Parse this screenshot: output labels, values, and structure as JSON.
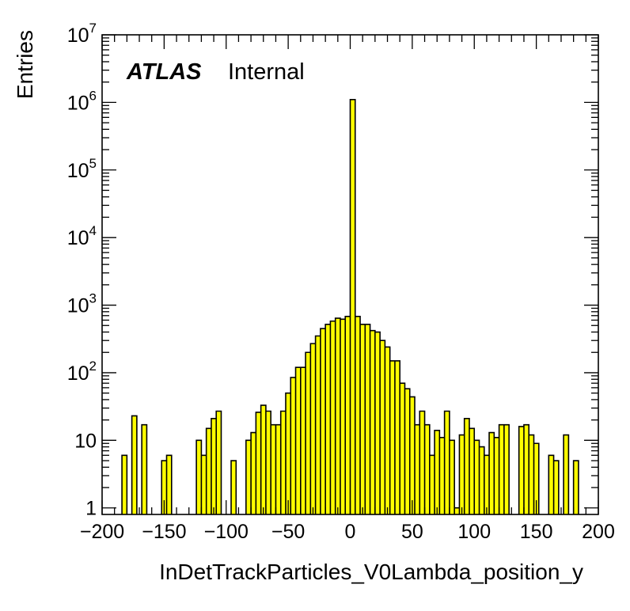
{
  "chart_data": {
    "type": "bar",
    "title": "",
    "xlabel": "InDetTrackParticles_V0Lambda_position_y",
    "ylabel": "Entries",
    "xlim": [
      -200,
      200
    ],
    "ylim": [
      0.8,
      10000000
    ],
    "log_y": true,
    "grid": false,
    "fill_color": "#ffff00",
    "edge_color": "#000000",
    "x_ticks": [
      -200,
      -150,
      -100,
      -50,
      0,
      50,
      100,
      150,
      200
    ],
    "x_tick_labels": [
      "−200",
      "−150",
      "−100",
      "−50",
      "0",
      "50",
      "100",
      "150",
      "200"
    ],
    "y_ticks": [
      {
        "value": 1,
        "base": "1",
        "exp": ""
      },
      {
        "value": 10,
        "base": "10",
        "exp": ""
      },
      {
        "value": 100,
        "base": "10",
        "exp": "2"
      },
      {
        "value": 1000,
        "base": "10",
        "exp": "3"
      },
      {
        "value": 10000,
        "base": "10",
        "exp": "4"
      },
      {
        "value": 100000,
        "base": "10",
        "exp": "5"
      },
      {
        "value": 1000000,
        "base": "10",
        "exp": "6"
      },
      {
        "value": 10000000,
        "base": "10",
        "exp": "7"
      }
    ],
    "bin_width": 4,
    "bins": [
      {
        "x0": -184,
        "y": 6
      },
      {
        "x0": -176,
        "y": 23
      },
      {
        "x0": -168,
        "y": 17
      },
      {
        "x0": -152,
        "y": 5
      },
      {
        "x0": -148,
        "y": 6
      },
      {
        "x0": -124,
        "y": 10
      },
      {
        "x0": -120,
        "y": 6
      },
      {
        "x0": -116,
        "y": 15
      },
      {
        "x0": -112,
        "y": 21
      },
      {
        "x0": -108,
        "y": 27
      },
      {
        "x0": -96,
        "y": 5
      },
      {
        "x0": -84,
        "y": 10
      },
      {
        "x0": -80,
        "y": 13
      },
      {
        "x0": -76,
        "y": 26
      },
      {
        "x0": -72,
        "y": 33
      },
      {
        "x0": -68,
        "y": 27
      },
      {
        "x0": -64,
        "y": 17
      },
      {
        "x0": -60,
        "y": 17
      },
      {
        "x0": -56,
        "y": 27
      },
      {
        "x0": -52,
        "y": 50
      },
      {
        "x0": -48,
        "y": 85
      },
      {
        "x0": -44,
        "y": 120
      },
      {
        "x0": -40,
        "y": 120
      },
      {
        "x0": -36,
        "y": 200
      },
      {
        "x0": -32,
        "y": 270
      },
      {
        "x0": -28,
        "y": 350
      },
      {
        "x0": -24,
        "y": 450
      },
      {
        "x0": -20,
        "y": 520
      },
      {
        "x0": -16,
        "y": 580
      },
      {
        "x0": -12,
        "y": 640
      },
      {
        "x0": -8,
        "y": 620
      },
      {
        "x0": -4,
        "y": 680
      },
      {
        "x0": 0,
        "y": 1100000
      },
      {
        "x0": 4,
        "y": 680
      },
      {
        "x0": 8,
        "y": 520
      },
      {
        "x0": 12,
        "y": 520
      },
      {
        "x0": 16,
        "y": 420
      },
      {
        "x0": 20,
        "y": 400
      },
      {
        "x0": 24,
        "y": 300
      },
      {
        "x0": 28,
        "y": 240
      },
      {
        "x0": 32,
        "y": 150
      },
      {
        "x0": 36,
        "y": 150
      },
      {
        "x0": 40,
        "y": 70
      },
      {
        "x0": 44,
        "y": 58
      },
      {
        "x0": 48,
        "y": 44
      },
      {
        "x0": 52,
        "y": 17
      },
      {
        "x0": 56,
        "y": 27
      },
      {
        "x0": 60,
        "y": 17
      },
      {
        "x0": 64,
        "y": 6
      },
      {
        "x0": 68,
        "y": 14
      },
      {
        "x0": 72,
        "y": 11
      },
      {
        "x0": 76,
        "y": 27
      },
      {
        "x0": 80,
        "y": 10
      },
      {
        "x0": 84,
        "y": 1
      },
      {
        "x0": 88,
        "y": 12
      },
      {
        "x0": 92,
        "y": 21
      },
      {
        "x0": 96,
        "y": 15
      },
      {
        "x0": 100,
        "y": 10
      },
      {
        "x0": 104,
        "y": 8
      },
      {
        "x0": 108,
        "y": 6
      },
      {
        "x0": 112,
        "y": 13
      },
      {
        "x0": 116,
        "y": 11
      },
      {
        "x0": 120,
        "y": 17
      },
      {
        "x0": 124,
        "y": 17
      },
      {
        "x0": 136,
        "y": 16
      },
      {
        "x0": 140,
        "y": 17
      },
      {
        "x0": 144,
        "y": 12
      },
      {
        "x0": 148,
        "y": 9
      },
      {
        "x0": 160,
        "y": 6
      },
      {
        "x0": 164,
        "y": 5
      },
      {
        "x0": 172,
        "y": 12
      },
      {
        "x0": 180,
        "y": 5
      }
    ],
    "annotations": [
      {
        "atlas": "ATLAS",
        "label": "Internal"
      }
    ]
  }
}
